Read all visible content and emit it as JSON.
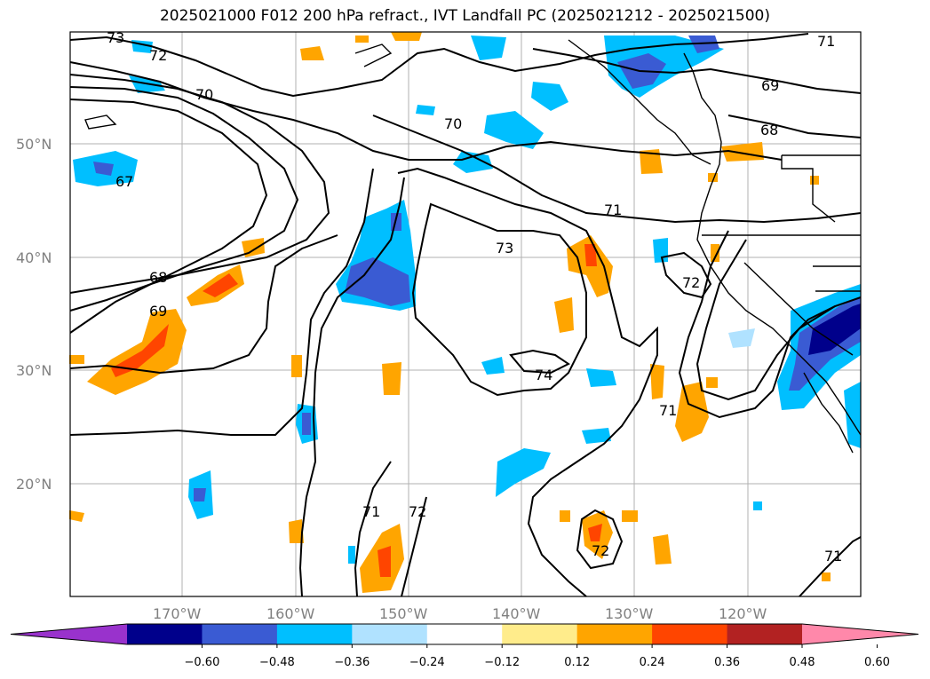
{
  "title": "2025021000 F012 200 hPa refract., IVT Landfall PC (2025021212 - 2025021500)",
  "lat_labels": [
    "50°N",
    "40°N",
    "30°N",
    "20°N"
  ],
  "lon_labels": [
    "170°W",
    "160°W",
    "150°W",
    "140°W",
    "130°W",
    "120°W"
  ],
  "contour_labels": [
    "73",
    "72",
    "70",
    "67",
    "68",
    "69",
    "70",
    "73",
    "71",
    "72",
    "74",
    "71",
    "69",
    "68",
    "71",
    "71",
    "72",
    "71"
  ],
  "colorbar": {
    "colors": [
      "#9932CC",
      "#00008B",
      "#3A5BD3",
      "#00BFFF",
      "#B0E2FF",
      "#FFFFFF",
      "#FFEC8B",
      "#FFA500",
      "#FF4500",
      "#B22222",
      "#FF88AA"
    ],
    "ticks": [
      "−0.60",
      "−0.48",
      "−0.36",
      "−0.24",
      "−0.12",
      "0.12",
      "0.24",
      "0.36",
      "0.48",
      "0.60"
    ]
  }
}
